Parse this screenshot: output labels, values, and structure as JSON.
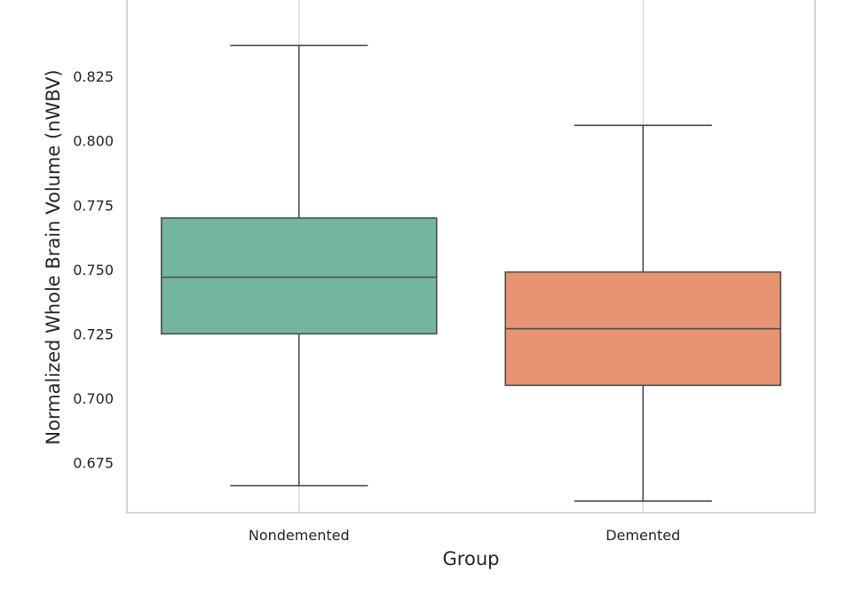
{
  "chart_data": {
    "type": "box",
    "xlabel": "Group",
    "ylabel": "Normalized Whole Brain Volume (nWBV)",
    "ylim": [
      0.6555,
      0.8547
    ],
    "yticks": [
      0.675,
      0.7,
      0.725,
      0.75,
      0.775,
      0.8,
      0.825
    ],
    "ytick_labels": [
      "0.675",
      "0.700",
      "0.725",
      "0.750",
      "0.775",
      "0.800",
      "0.825"
    ],
    "grid": true,
    "categories": [
      "Nondemented",
      "Demented"
    ],
    "boxes": [
      {
        "category": "Nondemented",
        "whisker_low": 0.666,
        "q1": 0.725,
        "median": 0.747,
        "q3": 0.77,
        "whisker_high": 0.837,
        "color": "#73b5a1"
      },
      {
        "category": "Demented",
        "whisker_low": 0.66,
        "q1": 0.705,
        "median": 0.727,
        "q3": 0.749,
        "whisker_high": 0.806,
        "color": "#e89472"
      }
    ],
    "colors": {
      "box_edge": "#4d4d4d",
      "grid": "#d3d3d3",
      "frame": "#cccccc",
      "text": "#262626"
    }
  }
}
